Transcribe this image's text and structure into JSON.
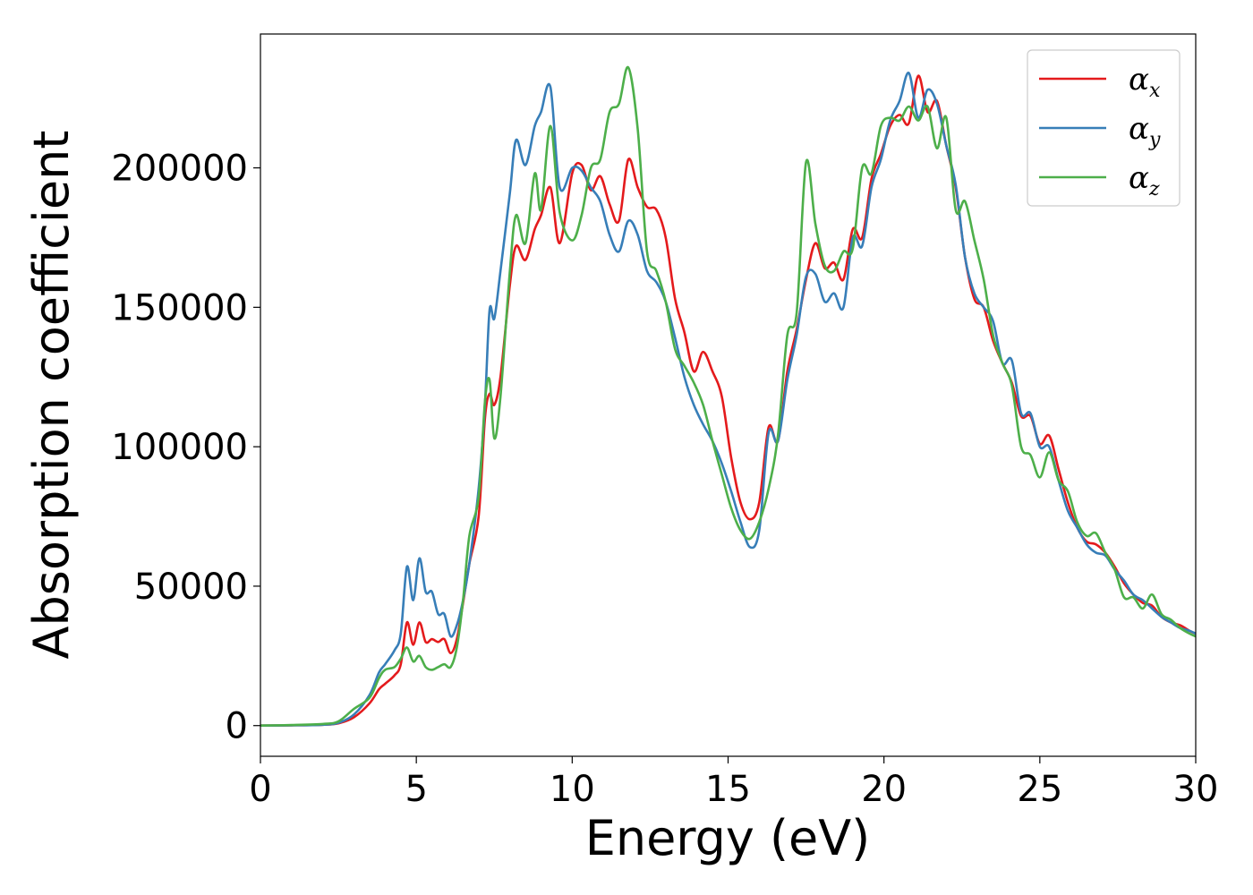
{
  "chart_data": {
    "type": "line",
    "title": "",
    "xlabel": "Energy (eV)",
    "ylabel": "Absorption coefficient",
    "xlim": [
      0,
      30
    ],
    "ylim": [
      -11000,
      248000
    ],
    "xticks": [
      0,
      5,
      10,
      15,
      20,
      25,
      30
    ],
    "yticks": [
      0,
      50000,
      100000,
      150000,
      200000
    ],
    "grid": false,
    "legend": "top-right",
    "series": [
      {
        "name": "α",
        "subscript": "x",
        "color": "#e41a1c",
        "x": [
          0,
          1,
          2,
          2.5,
          3,
          3.5,
          3.8,
          4,
          4.3,
          4.5,
          4.7,
          4.9,
          5.1,
          5.3,
          5.5,
          5.7,
          5.9,
          6.1,
          6.3,
          6.5,
          6.7,
          7.0,
          7.2,
          7.35,
          7.5,
          7.7,
          8.0,
          8.2,
          8.5,
          8.8,
          9.0,
          9.3,
          9.6,
          10.0,
          10.3,
          10.6,
          10.9,
          11.2,
          11.5,
          11.8,
          12.1,
          12.4,
          12.7,
          13.0,
          13.3,
          13.6,
          13.9,
          14.2,
          14.5,
          14.8,
          15.1,
          15.4,
          15.7,
          16.0,
          16.3,
          16.6,
          16.9,
          17.2,
          17.5,
          17.8,
          18.1,
          18.4,
          18.7,
          19.0,
          19.3,
          19.6,
          19.9,
          20.2,
          20.5,
          20.8,
          21.1,
          21.4,
          21.7,
          22.0,
          22.3,
          22.6,
          22.9,
          23.2,
          23.5,
          23.8,
          24.1,
          24.4,
          24.7,
          25.0,
          25.3,
          25.6,
          25.9,
          26.2,
          26.5,
          26.8,
          27.1,
          27.4,
          27.7,
          28.0,
          28.3,
          28.6,
          28.9,
          29.2,
          29.5,
          29.8,
          30
        ],
        "y": [
          0,
          100,
          300,
          800,
          3000,
          8000,
          13000,
          15000,
          18000,
          22000,
          37000,
          29000,
          37000,
          30000,
          31000,
          30000,
          31000,
          26000,
          31000,
          44000,
          58000,
          75000,
          110000,
          119000,
          115000,
          125000,
          158000,
          172000,
          167000,
          178000,
          183000,
          193000,
          173000,
          198000,
          201000,
          192000,
          197000,
          187000,
          181000,
          203000,
          193000,
          186000,
          185000,
          175000,
          153000,
          141000,
          127000,
          134000,
          127000,
          118000,
          96000,
          80000,
          74000,
          80000,
          107000,
          102000,
          127000,
          142000,
          160000,
          173000,
          164000,
          166000,
          160000,
          178000,
          175000,
          196000,
          205000,
          215000,
          219000,
          216000,
          233000,
          220000,
          224000,
          208000,
          193000,
          168000,
          153000,
          150000,
          138000,
          130000,
          123000,
          111000,
          111000,
          101000,
          104000,
          92000,
          80000,
          71000,
          66000,
          65000,
          62000,
          57000,
          51000,
          47000,
          44000,
          43000,
          39000,
          37000,
          36000,
          34000,
          33000
        ]
      },
      {
        "name": "α",
        "subscript": "y",
        "color": "#377eb8",
        "x": [
          0,
          1,
          2,
          2.5,
          3,
          3.5,
          3.8,
          4,
          4.3,
          4.5,
          4.7,
          4.9,
          5.1,
          5.3,
          5.5,
          5.7,
          5.9,
          6.1,
          6.3,
          6.5,
          6.7,
          7.0,
          7.2,
          7.35,
          7.5,
          7.7,
          8.0,
          8.2,
          8.5,
          8.8,
          9.0,
          9.3,
          9.6,
          10.0,
          10.3,
          10.6,
          10.9,
          11.2,
          11.5,
          11.8,
          12.1,
          12.4,
          12.7,
          13.0,
          13.3,
          13.6,
          13.9,
          14.2,
          14.5,
          14.8,
          15.1,
          15.4,
          15.7,
          16.0,
          16.3,
          16.6,
          16.9,
          17.2,
          17.5,
          17.8,
          18.1,
          18.4,
          18.7,
          19.0,
          19.3,
          19.6,
          19.9,
          20.2,
          20.5,
          20.8,
          21.1,
          21.4,
          21.7,
          22.0,
          22.3,
          22.6,
          22.9,
          23.2,
          23.5,
          23.8,
          24.1,
          24.4,
          24.7,
          25.0,
          25.3,
          25.6,
          25.9,
          26.2,
          26.5,
          26.8,
          27.1,
          27.4,
          27.7,
          28.0,
          28.3,
          28.6,
          28.9,
          29.2,
          29.5,
          29.8,
          30
        ],
        "y": [
          0,
          100,
          300,
          1000,
          4000,
          11000,
          19000,
          22000,
          27000,
          33000,
          57000,
          45000,
          60000,
          48000,
          48000,
          40000,
          40000,
          32000,
          36000,
          45000,
          58000,
          85000,
          115000,
          149000,
          146000,
          163000,
          191000,
          210000,
          201000,
          215000,
          220000,
          229000,
          193000,
          200000,
          199000,
          193000,
          188000,
          176000,
          170000,
          181000,
          176000,
          163000,
          159000,
          152000,
          139000,
          125000,
          115000,
          108000,
          102000,
          94000,
          84000,
          73000,
          64000,
          70000,
          105000,
          102000,
          124000,
          140000,
          161000,
          162000,
          152000,
          155000,
          150000,
          175000,
          172000,
          193000,
          203000,
          217000,
          224000,
          234000,
          218000,
          228000,
          223000,
          208000,
          194000,
          168000,
          155000,
          150000,
          145000,
          130000,
          131000,
          112000,
          112000,
          100000,
          100000,
          88000,
          77000,
          71000,
          65000,
          62000,
          61000,
          56000,
          52000,
          47000,
          45000,
          42000,
          39000,
          37000,
          35000,
          34000,
          33000
        ]
      },
      {
        "name": "α",
        "subscript": "z",
        "color": "#4daf4a",
        "x": [
          0,
          1,
          2,
          2.5,
          3,
          3.5,
          3.8,
          4,
          4.3,
          4.5,
          4.7,
          4.9,
          5.1,
          5.3,
          5.5,
          5.7,
          5.9,
          6.1,
          6.3,
          6.5,
          6.7,
          7.0,
          7.2,
          7.35,
          7.5,
          7.7,
          8.0,
          8.2,
          8.5,
          8.8,
          9.0,
          9.3,
          9.6,
          10.0,
          10.3,
          10.6,
          10.9,
          11.2,
          11.5,
          11.8,
          12.1,
          12.4,
          12.7,
          13.0,
          13.3,
          13.6,
          13.9,
          14.2,
          14.5,
          14.8,
          15.1,
          15.4,
          15.7,
          16.0,
          16.3,
          16.6,
          16.9,
          17.2,
          17.5,
          17.8,
          18.1,
          18.4,
          18.7,
          19.0,
          19.3,
          19.6,
          19.9,
          20.2,
          20.5,
          20.8,
          21.1,
          21.4,
          21.7,
          22.0,
          22.3,
          22.6,
          22.9,
          23.2,
          23.5,
          23.8,
          24.1,
          24.4,
          24.7,
          25.0,
          25.3,
          25.6,
          25.9,
          26.2,
          26.5,
          26.8,
          27.1,
          27.4,
          27.7,
          28.0,
          28.3,
          28.6,
          28.9,
          29.2,
          29.5,
          29.8,
          30
        ],
        "y": [
          0,
          200,
          600,
          1500,
          6000,
          10000,
          17000,
          20000,
          21000,
          24000,
          28000,
          23000,
          25000,
          21000,
          20000,
          21000,
          22000,
          21000,
          28000,
          45000,
          68000,
          82000,
          116000,
          124000,
          103000,
          118000,
          163000,
          183000,
          173000,
          198000,
          185000,
          215000,
          184000,
          174000,
          183000,
          200000,
          203000,
          220000,
          223000,
          236000,
          214000,
          170000,
          163000,
          152000,
          135000,
          129000,
          123000,
          115000,
          102000,
          90000,
          78000,
          70000,
          67000,
          73000,
          85000,
          104000,
          140000,
          148000,
          202000,
          180000,
          165000,
          163000,
          170000,
          171000,
          200000,
          198000,
          215000,
          218000,
          217000,
          222000,
          217000,
          222000,
          207000,
          218000,
          185000,
          188000,
          174000,
          160000,
          140000,
          130000,
          122000,
          100000,
          97000,
          89000,
          98000,
          88000,
          84000,
          73000,
          68000,
          69000,
          62000,
          56000,
          46000,
          46000,
          42000,
          47000,
          40000,
          38000,
          35000,
          33000,
          32000
        ]
      }
    ]
  }
}
